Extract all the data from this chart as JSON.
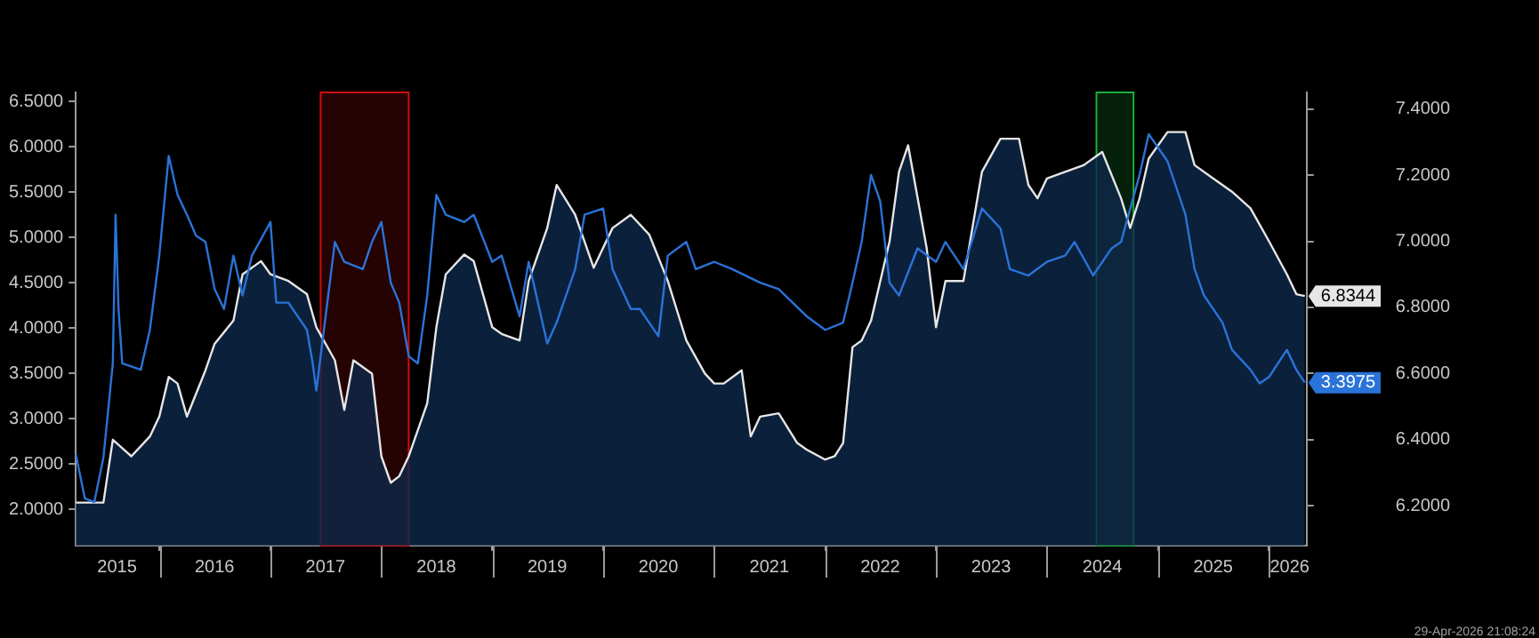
{
  "chart_data": {
    "type": "line",
    "xlim": [
      "2015-04-01",
      "2026-05-05"
    ],
    "xticks": [
      {
        "value": "2015-08-15",
        "label": "2015"
      },
      {
        "value": "2016-01-01",
        "label": null
      },
      {
        "value": "2016-07-01",
        "label": "2016"
      },
      {
        "value": "2017-01-01",
        "label": null
      },
      {
        "value": "2017-07-01",
        "label": "2017"
      },
      {
        "value": "2018-01-01",
        "label": null
      },
      {
        "value": "2018-07-01",
        "label": "2018"
      },
      {
        "value": "2019-01-01",
        "label": null
      },
      {
        "value": "2019-07-01",
        "label": "2019"
      },
      {
        "value": "2020-01-01",
        "label": null
      },
      {
        "value": "2020-07-01",
        "label": "2020"
      },
      {
        "value": "2021-01-01",
        "label": null
      },
      {
        "value": "2021-07-01",
        "label": "2021"
      },
      {
        "value": "2022-01-01",
        "label": null
      },
      {
        "value": "2022-07-01",
        "label": "2022"
      },
      {
        "value": "2023-01-01",
        "label": null
      },
      {
        "value": "2023-07-01",
        "label": "2023"
      },
      {
        "value": "2024-01-01",
        "label": null
      },
      {
        "value": "2024-07-01",
        "label": "2024"
      },
      {
        "value": "2025-01-01",
        "label": null
      },
      {
        "value": "2025-07-01",
        "label": "2025"
      },
      {
        "value": "2026-01-01",
        "label": null
      },
      {
        "value": "2026-03-10",
        "label": "2026"
      }
    ],
    "ylim": [
      1.6,
      6.6
    ],
    "yticks": [
      {
        "value": 2,
        "label": "2.0000"
      },
      {
        "value": 2.5,
        "label": "2.5000"
      },
      {
        "value": 3,
        "label": "3.0000"
      },
      {
        "value": 3.5,
        "label": "3.5000"
      },
      {
        "value": 4,
        "label": "4.0000"
      },
      {
        "value": 4.5,
        "label": "4.5000"
      },
      {
        "value": 5,
        "label": "5.0000"
      },
      {
        "value": 5.5,
        "label": "5.5000"
      },
      {
        "value": 6,
        "label": "6.0000"
      },
      {
        "value": 6.5,
        "label": "6.5000"
      }
    ],
    "y2lim": [
      6.08,
      7.45
    ],
    "y2ticks": [
      {
        "value": 6.2,
        "label": "6.2000"
      },
      {
        "value": 6.4,
        "label": "6.4000"
      },
      {
        "value": 6.6,
        "label": "6.6000"
      },
      {
        "value": 6.8,
        "label": "6.8000"
      },
      {
        "value": 7,
        "label": "7.0000"
      },
      {
        "value": 7.2,
        "label": "7.2000"
      },
      {
        "value": 7.4,
        "label": "7.4000"
      }
    ],
    "grid": false,
    "legend": false,
    "marker": "none",
    "line_style": "solid",
    "bands": [
      {
        "axis": "x",
        "from": "2017-06-15",
        "to": "2018-04-01",
        "color": "#e01010"
      },
      {
        "axis": "x",
        "from": "2024-06-12",
        "to": "2024-10-12",
        "color": "#20c040"
      }
    ],
    "annotations": [
      "29-Apr-2026 21:08:24"
    ],
    "series": [
      {
        "type": "area",
        "axis": "y2",
        "color": "#e6e6e6",
        "x": [
          "2015-04",
          "2015-07",
          "2015-08",
          "2015-10",
          "2015-12",
          "2016-01",
          "2016-02",
          "2016-03",
          "2016-04",
          "2016-06",
          "2016-07",
          "2016-09",
          "2016-10",
          "2016-12",
          "2017-01",
          "2017-03",
          "2017-05",
          "2017-06",
          "2017-08",
          "2017-09",
          "2017-10",
          "2017-12",
          "2018-01",
          "2018-02",
          "2018-03",
          "2018-04",
          "2018-06",
          "2018-07",
          "2018-08",
          "2018-10",
          "2018-11",
          "2019-01",
          "2019-02",
          "2019-04",
          "2019-05",
          "2019-07",
          "2019-08",
          "2019-10",
          "2019-12",
          "2020-02",
          "2020-04",
          "2020-06",
          "2020-08",
          "2020-10",
          "2020-12",
          "2021-01",
          "2021-02",
          "2021-04",
          "2021-05",
          "2021-06",
          "2021-08",
          "2021-10",
          "2021-11",
          "2022-01",
          "2022-02",
          "2022-03",
          "2022-04",
          "2022-05",
          "2022-06",
          "2022-08",
          "2022-09",
          "2022-10",
          "2022-12",
          "2023-01",
          "2023-02",
          "2023-04",
          "2023-06",
          "2023-08",
          "2023-10",
          "2023-11",
          "2023-12",
          "2024-01",
          "2024-03",
          "2024-05",
          "2024-07",
          "2024-09",
          "2024-10",
          "2024-11",
          "2024-12",
          "2025-02",
          "2025-04",
          "2025-05",
          "2025-07",
          "2025-09",
          "2025-11",
          "2026-01",
          "2026-03",
          "2026-04",
          "2026-04-29"
        ],
        "values": [
          6.21,
          6.21,
          6.4,
          6.35,
          6.41,
          6.47,
          6.59,
          6.57,
          6.47,
          6.61,
          6.69,
          6.76,
          6.9,
          6.94,
          6.9,
          6.88,
          6.84,
          6.74,
          6.64,
          6.49,
          6.64,
          6.6,
          6.35,
          6.27,
          6.29,
          6.35,
          6.51,
          6.74,
          6.9,
          6.96,
          6.94,
          6.74,
          6.72,
          6.7,
          6.88,
          7.04,
          7.17,
          7.08,
          6.92,
          7.04,
          7.08,
          7.02,
          6.88,
          6.7,
          6.6,
          6.57,
          6.57,
          6.61,
          6.41,
          6.47,
          6.48,
          6.39,
          6.37,
          6.34,
          6.35,
          6.39,
          6.68,
          6.7,
          6.76,
          7,
          7.21,
          7.29,
          6.98,
          6.74,
          6.88,
          6.88,
          7.21,
          7.31,
          7.31,
          7.17,
          7.13,
          7.19,
          7.21,
          7.23,
          7.27,
          7.13,
          7.04,
          7.13,
          7.25,
          7.33,
          7.33,
          7.23,
          7.19,
          7.15,
          7.1,
          7,
          6.9,
          6.84,
          6.8344
        ],
        "value_labels": [
          null,
          null,
          null,
          null,
          null,
          null,
          null,
          null,
          null,
          null,
          null,
          null,
          null,
          null,
          null,
          null,
          null,
          null,
          null,
          null,
          null,
          null,
          null,
          null,
          null,
          null,
          null,
          null,
          null,
          null,
          null,
          null,
          null,
          null,
          null,
          null,
          null,
          null,
          null,
          null,
          null,
          null,
          null,
          null,
          null,
          null,
          null,
          null,
          null,
          null,
          null,
          null,
          null,
          null,
          null,
          null,
          null,
          null,
          null,
          null,
          null,
          null,
          null,
          null,
          null,
          null,
          null,
          null,
          null,
          null,
          null,
          null,
          null,
          null,
          null,
          null,
          null,
          null,
          null,
          null,
          null,
          null,
          null,
          null,
          null,
          null,
          null,
          null,
          "6.8344"
        ]
      },
      {
        "type": "line",
        "color": "#2a73d8",
        "x": [
          "2015-04",
          "2015-05",
          "2015-06",
          "2015-07",
          "2015-08",
          "2015-08-10",
          "2015-08-20",
          "2015-09",
          "2015-11",
          "2015-12",
          "2016-01",
          "2016-02",
          "2016-03",
          "2016-04",
          "2016-05",
          "2016-06",
          "2016-07",
          "2016-08",
          "2016-09",
          "2016-10",
          "2016-11",
          "2017-01",
          "2017-01-20",
          "2017-03",
          "2017-05",
          "2017-05-20",
          "2017-06",
          "2017-08",
          "2017-09",
          "2017-11",
          "2017-12",
          "2018-01",
          "2018-02",
          "2018-03",
          "2018-04",
          "2018-05",
          "2018-06",
          "2018-07",
          "2018-08",
          "2018-10",
          "2018-11",
          "2019-01",
          "2019-02",
          "2019-04",
          "2019-05",
          "2019-07",
          "2019-08",
          "2019-10",
          "2019-11",
          "2020-01",
          "2020-02",
          "2020-04",
          "2020-05",
          "2020-07",
          "2020-08",
          "2020-10",
          "2020-11",
          "2021-01",
          "2021-03",
          "2021-06",
          "2021-08",
          "2021-11",
          "2022-01",
          "2022-03",
          "2022-04",
          "2022-05",
          "2022-06",
          "2022-07",
          "2022-08",
          "2022-09",
          "2022-11",
          "2023-01",
          "2023-02",
          "2023-04",
          "2023-06",
          "2023-08",
          "2023-09",
          "2023-11",
          "2024-01",
          "2024-03",
          "2024-04",
          "2024-06",
          "2024-08",
          "2024-09",
          "2024-11",
          "2024-12",
          "2025-02",
          "2025-04",
          "2025-05",
          "2025-06",
          "2025-08",
          "2025-09",
          "2025-11",
          "2025-12",
          "2026-01",
          "2026-03",
          "2026-04",
          "2026-04-29"
        ],
        "values": [
          2.61,
          2.12,
          2.08,
          2.57,
          3.61,
          5.25,
          4.2,
          3.61,
          3.54,
          3.98,
          4.8,
          5.9,
          5.47,
          5.25,
          5.02,
          4.95,
          4.43,
          4.21,
          4.8,
          4.36,
          4.8,
          5.17,
          4.28,
          4.28,
          3.98,
          3.61,
          3.31,
          4.95,
          4.73,
          4.65,
          4.95,
          5.17,
          4.5,
          4.28,
          3.69,
          3.61,
          4.36,
          5.47,
          5.25,
          5.17,
          5.25,
          4.73,
          4.8,
          4.13,
          4.73,
          3.83,
          4.06,
          4.65,
          5.25,
          5.32,
          4.65,
          4.21,
          4.21,
          3.91,
          4.8,
          4.95,
          4.65,
          4.73,
          4.65,
          4.5,
          4.43,
          4.13,
          3.98,
          4.06,
          4.5,
          4.95,
          5.69,
          5.4,
          4.5,
          4.36,
          4.88,
          4.73,
          4.95,
          4.65,
          5.32,
          5.1,
          4.65,
          4.58,
          4.73,
          4.8,
          4.95,
          4.58,
          4.88,
          4.95,
          5.69,
          6.14,
          5.84,
          5.25,
          4.65,
          4.36,
          4.06,
          3.76,
          3.54,
          3.39,
          3.46,
          3.76,
          3.54,
          3.3975
        ],
        "value_labels": [
          null,
          null,
          null,
          null,
          null,
          null,
          null,
          null,
          null,
          null,
          null,
          null,
          null,
          null,
          null,
          null,
          null,
          null,
          null,
          null,
          null,
          null,
          null,
          null,
          null,
          null,
          null,
          null,
          null,
          null,
          null,
          null,
          null,
          null,
          null,
          null,
          null,
          null,
          null,
          null,
          null,
          null,
          null,
          null,
          null,
          null,
          null,
          null,
          null,
          null,
          null,
          null,
          null,
          null,
          null,
          null,
          null,
          null,
          null,
          null,
          null,
          null,
          null,
          null,
          null,
          null,
          null,
          null,
          null,
          null,
          null,
          null,
          null,
          null,
          null,
          null,
          null,
          null,
          null,
          null,
          null,
          null,
          null,
          null,
          null,
          null,
          null,
          null,
          null,
          null,
          null,
          null,
          null,
          null,
          null,
          null,
          null,
          "3.3975"
        ]
      }
    ]
  }
}
